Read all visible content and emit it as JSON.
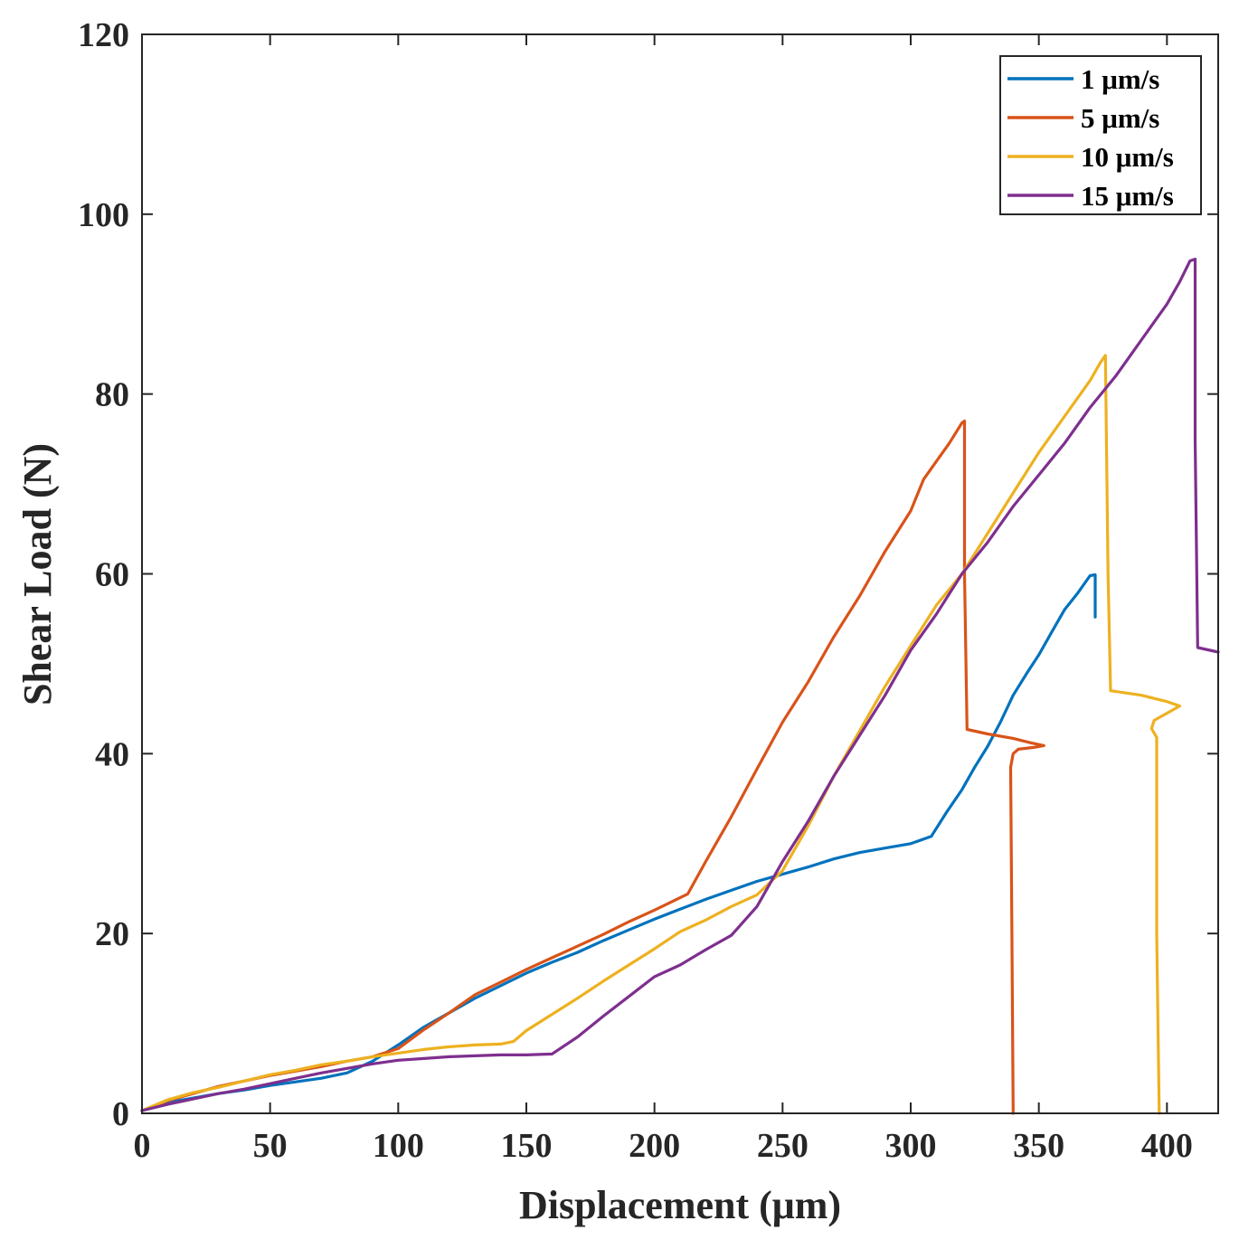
{
  "chart_data": {
    "type": "line",
    "title": "",
    "xlabel": "Displacement (μm)",
    "ylabel": "Shear Load (N)",
    "xlim": [
      0,
      420
    ],
    "ylim": [
      0,
      120
    ],
    "xticks": [
      0,
      50,
      100,
      150,
      200,
      250,
      300,
      350,
      400
    ],
    "yticks": [
      0,
      20,
      40,
      60,
      80,
      100,
      120
    ],
    "xtick_labels": [
      "0",
      "50",
      "100",
      "150",
      "200",
      "250",
      "300",
      "350",
      "400"
    ],
    "ytick_labels": [
      "0",
      "20",
      "40",
      "60",
      "80",
      "100",
      "120"
    ],
    "grid": false,
    "legend_position": "top-right",
    "series": [
      {
        "name": "1 μm/s",
        "color": "#0072BD",
        "points": [
          [
            0,
            0.3
          ],
          [
            10,
            1.2
          ],
          [
            20,
            1.7
          ],
          [
            30,
            2.2
          ],
          [
            40,
            2.6
          ],
          [
            50,
            3.1
          ],
          [
            60,
            3.5
          ],
          [
            70,
            3.9
          ],
          [
            80,
            4.5
          ],
          [
            90,
            5.8
          ],
          [
            100,
            7.6
          ],
          [
            110,
            9.6
          ],
          [
            120,
            11.2
          ],
          [
            130,
            12.8
          ],
          [
            140,
            14.2
          ],
          [
            150,
            15.6
          ],
          [
            160,
            16.8
          ],
          [
            170,
            17.9
          ],
          [
            180,
            19.2
          ],
          [
            190,
            20.4
          ],
          [
            200,
            21.6
          ],
          [
            210,
            22.7
          ],
          [
            220,
            23.8
          ],
          [
            230,
            24.8
          ],
          [
            240,
            25.8
          ],
          [
            250,
            26.6
          ],
          [
            260,
            27.4
          ],
          [
            270,
            28.3
          ],
          [
            280,
            29.0
          ],
          [
            290,
            29.5
          ],
          [
            300,
            30.0
          ],
          [
            308,
            30.8
          ],
          [
            314,
            33.5
          ],
          [
            320,
            36.0
          ],
          [
            325,
            38.5
          ],
          [
            330,
            40.8
          ],
          [
            335,
            43.5
          ],
          [
            340,
            46.5
          ],
          [
            345,
            48.8
          ],
          [
            350,
            51.0
          ],
          [
            355,
            53.5
          ],
          [
            360,
            56.0
          ],
          [
            365,
            57.8
          ],
          [
            370,
            59.8
          ],
          [
            372,
            59.9
          ],
          [
            372,
            55.2
          ]
        ]
      },
      {
        "name": "5 μm/s",
        "color": "#D95319",
        "points": [
          [
            0,
            0.3
          ],
          [
            10,
            1.4
          ],
          [
            20,
            2.2
          ],
          [
            30,
            3.0
          ],
          [
            40,
            3.6
          ],
          [
            50,
            4.2
          ],
          [
            60,
            4.7
          ],
          [
            70,
            5.2
          ],
          [
            80,
            5.8
          ],
          [
            90,
            6.3
          ],
          [
            100,
            7.2
          ],
          [
            110,
            9.3
          ],
          [
            120,
            11.2
          ],
          [
            130,
            13.2
          ],
          [
            140,
            14.6
          ],
          [
            150,
            16.0
          ],
          [
            160,
            17.3
          ],
          [
            170,
            18.6
          ],
          [
            180,
            19.9
          ],
          [
            190,
            21.3
          ],
          [
            200,
            22.6
          ],
          [
            213,
            24.4
          ],
          [
            220,
            28.0
          ],
          [
            230,
            33.0
          ],
          [
            240,
            38.3
          ],
          [
            250,
            43.5
          ],
          [
            260,
            48.0
          ],
          [
            270,
            53.0
          ],
          [
            280,
            57.5
          ],
          [
            290,
            62.5
          ],
          [
            300,
            67.0
          ],
          [
            305,
            70.5
          ],
          [
            310,
            72.5
          ],
          [
            315,
            74.5
          ],
          [
            320,
            76.8
          ],
          [
            321,
            77.0
          ],
          [
            321,
            60.0
          ],
          [
            322,
            42.7
          ],
          [
            330,
            42.2
          ],
          [
            340,
            41.7
          ],
          [
            347,
            41.2
          ],
          [
            352,
            40.9
          ],
          [
            348,
            40.7
          ],
          [
            342,
            40.5
          ],
          [
            340,
            40.0
          ],
          [
            339,
            38.5
          ],
          [
            339.5,
            20.0
          ],
          [
            340,
            0
          ]
        ]
      },
      {
        "name": "10 μm/s",
        "color": "#EDB120",
        "points": [
          [
            0,
            0.3
          ],
          [
            10,
            1.5
          ],
          [
            20,
            2.3
          ],
          [
            30,
            2.9
          ],
          [
            40,
            3.6
          ],
          [
            50,
            4.3
          ],
          [
            60,
            4.8
          ],
          [
            70,
            5.4
          ],
          [
            80,
            5.8
          ],
          [
            90,
            6.3
          ],
          [
            100,
            6.7
          ],
          [
            110,
            7.1
          ],
          [
            120,
            7.4
          ],
          [
            130,
            7.6
          ],
          [
            140,
            7.7
          ],
          [
            145,
            8.0
          ],
          [
            150,
            9.2
          ],
          [
            160,
            11.0
          ],
          [
            170,
            12.8
          ],
          [
            180,
            14.7
          ],
          [
            190,
            16.5
          ],
          [
            200,
            18.3
          ],
          [
            210,
            20.2
          ],
          [
            220,
            21.5
          ],
          [
            230,
            23.0
          ],
          [
            240,
            24.3
          ],
          [
            250,
            27.0
          ],
          [
            260,
            32.0
          ],
          [
            270,
            37.5
          ],
          [
            280,
            42.5
          ],
          [
            290,
            47.5
          ],
          [
            300,
            52.0
          ],
          [
            310,
            56.5
          ],
          [
            320,
            60.0
          ],
          [
            330,
            64.5
          ],
          [
            340,
            69.0
          ],
          [
            350,
            73.5
          ],
          [
            360,
            77.5
          ],
          [
            370,
            81.5
          ],
          [
            374,
            83.5
          ],
          [
            376,
            84.3
          ],
          [
            377,
            60.0
          ],
          [
            378,
            47.0
          ],
          [
            390,
            46.5
          ],
          [
            400,
            45.8
          ],
          [
            405,
            45.3
          ],
          [
            400,
            44.5
          ],
          [
            395,
            43.7
          ],
          [
            394,
            42.8
          ],
          [
            396,
            41.8
          ],
          [
            396,
            20.0
          ],
          [
            397,
            0
          ]
        ]
      },
      {
        "name": "15 μm/s",
        "color": "#7E2F8E",
        "points": [
          [
            0,
            0.3
          ],
          [
            10,
            1.0
          ],
          [
            20,
            1.6
          ],
          [
            30,
            2.2
          ],
          [
            40,
            2.7
          ],
          [
            50,
            3.3
          ],
          [
            60,
            3.9
          ],
          [
            70,
            4.5
          ],
          [
            80,
            5.0
          ],
          [
            90,
            5.5
          ],
          [
            100,
            5.9
          ],
          [
            110,
            6.1
          ],
          [
            120,
            6.3
          ],
          [
            130,
            6.4
          ],
          [
            140,
            6.5
          ],
          [
            150,
            6.5
          ],
          [
            160,
            6.6
          ],
          [
            170,
            8.5
          ],
          [
            180,
            10.8
          ],
          [
            190,
            13.0
          ],
          [
            200,
            15.2
          ],
          [
            210,
            16.5
          ],
          [
            220,
            18.2
          ],
          [
            230,
            19.8
          ],
          [
            240,
            23.0
          ],
          [
            250,
            28.0
          ],
          [
            260,
            32.5
          ],
          [
            270,
            37.5
          ],
          [
            280,
            42.0
          ],
          [
            290,
            46.5
          ],
          [
            300,
            51.5
          ],
          [
            310,
            55.5
          ],
          [
            320,
            60.0
          ],
          [
            330,
            63.5
          ],
          [
            340,
            67.5
          ],
          [
            350,
            71.0
          ],
          [
            360,
            74.5
          ],
          [
            370,
            78.5
          ],
          [
            380,
            82.0
          ],
          [
            390,
            86.0
          ],
          [
            400,
            90.0
          ],
          [
            405,
            92.5
          ],
          [
            409,
            94.8
          ],
          [
            411,
            95.0
          ],
          [
            411,
            75.0
          ],
          [
            412,
            51.8
          ],
          [
            420,
            51.3
          ]
        ]
      }
    ]
  }
}
